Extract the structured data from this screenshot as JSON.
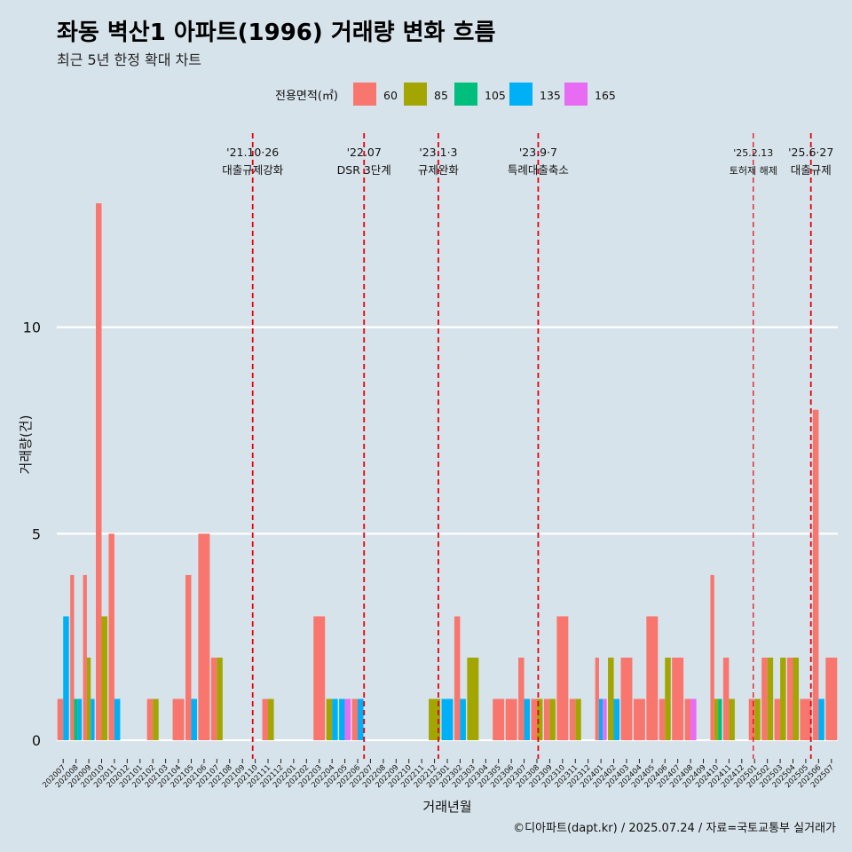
{
  "title": "좌동 벽산1 아파트(1996) 거래량 변화 흐름",
  "subtitle": "최근 5년 한정 확대 차트",
  "caption": "©디아파트(dapt.kr) / 2025.07.24 / 자료=국토교통부 실거래가",
  "colors": {
    "60": "#F8766D",
    "85": "#A3A500",
    "105": "#00BF7D",
    "135": "#00B0F6",
    "165": "#E76BF3",
    "background": "#d7e3ea",
    "vline": "#e8000b"
  },
  "chart_data": {
    "type": "bar",
    "xlabel": "거래년월",
    "ylabel": "거래량(건)",
    "ylim": [
      -0.45,
      14.7
    ],
    "yticks": [
      0,
      5,
      10
    ],
    "grid": true,
    "legend": {
      "title": "전용면적(㎡)",
      "position": "top",
      "entries": [
        "60",
        "85",
        "105",
        "135",
        "165"
      ]
    },
    "categories": [
      "202007",
      "202008",
      "202009",
      "202010",
      "202011",
      "202012",
      "202101",
      "202102",
      "202103",
      "202104",
      "202105",
      "202106",
      "202107",
      "202108",
      "202109",
      "202110",
      "202111",
      "202112",
      "202201",
      "202202",
      "202203",
      "202204",
      "202205",
      "202206",
      "202207",
      "202208",
      "202209",
      "202210",
      "202211",
      "202212",
      "202301",
      "202302",
      "202303",
      "202304",
      "202305",
      "202306",
      "202307",
      "202308",
      "202309",
      "202310",
      "202311",
      "202312",
      "202401",
      "202402",
      "202403",
      "202404",
      "202405",
      "202406",
      "202407",
      "202408",
      "202409",
      "202410",
      "202411",
      "202412",
      "202501",
      "202502",
      "202503",
      "202504",
      "202505",
      "202506",
      "202507"
    ],
    "series": [
      {
        "name": "60",
        "values": [
          1,
          4,
          4,
          13,
          5,
          0,
          0,
          1,
          0,
          1,
          4,
          5,
          2,
          0,
          0,
          0,
          1,
          0,
          0,
          0,
          3,
          0,
          0,
          1,
          0,
          0,
          0,
          0,
          0,
          0,
          0,
          3,
          0,
          0,
          1,
          1,
          2,
          1,
          1,
          3,
          1,
          0,
          2,
          0,
          2,
          1,
          3,
          1,
          2,
          1,
          0,
          4,
          2,
          0,
          1,
          2,
          1,
          2,
          1,
          8,
          2
        ]
      },
      {
        "name": "85",
        "values": [
          0,
          0,
          2,
          3,
          0,
          0,
          0,
          1,
          0,
          0,
          0,
          0,
          2,
          0,
          0,
          0,
          1,
          0,
          0,
          0,
          0,
          1,
          0,
          0,
          0,
          0,
          0,
          0,
          0,
          1,
          0,
          0,
          2,
          0,
          0,
          0,
          0,
          1,
          1,
          0,
          1,
          0,
          0,
          2,
          0,
          0,
          0,
          2,
          0,
          0,
          0,
          1,
          1,
          0,
          1,
          2,
          2,
          2,
          0,
          0,
          0
        ]
      },
      {
        "name": "105",
        "values": [
          0,
          1,
          0,
          0,
          0,
          0,
          0,
          0,
          0,
          0,
          0,
          0,
          0,
          0,
          0,
          0,
          0,
          0,
          0,
          0,
          0,
          0,
          0,
          0,
          0,
          0,
          0,
          0,
          0,
          0,
          0,
          0,
          0,
          0,
          0,
          0,
          0,
          0,
          0,
          0,
          0,
          0,
          0,
          0,
          0,
          0,
          0,
          0,
          0,
          0,
          0,
          1,
          0,
          0,
          0,
          0,
          0,
          0,
          0,
          0,
          0
        ]
      },
      {
        "name": "135",
        "values": [
          3,
          1,
          1,
          0,
          1,
          0,
          0,
          0,
          0,
          0,
          1,
          0,
          0,
          0,
          0,
          0,
          0,
          0,
          0,
          0,
          0,
          1,
          1,
          1,
          0,
          0,
          0,
          0,
          0,
          0,
          1,
          1,
          0,
          0,
          0,
          0,
          1,
          0,
          0,
          0,
          0,
          0,
          1,
          1,
          0,
          0,
          0,
          0,
          0,
          0,
          0,
          0,
          0,
          0,
          0,
          0,
          0,
          0,
          0,
          1,
          0
        ]
      },
      {
        "name": "165",
        "values": [
          0,
          0,
          0,
          0,
          0,
          0,
          0,
          0,
          0,
          0,
          0,
          0,
          0,
          0,
          0,
          0,
          0,
          0,
          0,
          0,
          0,
          0,
          1,
          0,
          0,
          0,
          0,
          0,
          0,
          0,
          0,
          0,
          0,
          0,
          0,
          0,
          0,
          0,
          0,
          0,
          0,
          0,
          1,
          0,
          0,
          0,
          0,
          0,
          0,
          1,
          0,
          0,
          0,
          0,
          0,
          0,
          0,
          0,
          0,
          0,
          0
        ]
      }
    ],
    "annotations": [
      {
        "date": "'21.10·26",
        "label": "대출규제강화",
        "x": 15.3
      },
      {
        "date": "'22.07",
        "label": "DSR 3단계",
        "x": 24.0
      },
      {
        "date": "'23.1·3",
        "label": "규제완화",
        "x": 29.8
      },
      {
        "date": "'23.9·7",
        "label": "특례대출축소",
        "x": 37.6
      },
      {
        "date": "'25.2.13",
        "label": "토허제 해제",
        "x": 54.4
      },
      {
        "date": "'25.6·27",
        "label": "대출규제",
        "x": 58.9
      }
    ]
  }
}
